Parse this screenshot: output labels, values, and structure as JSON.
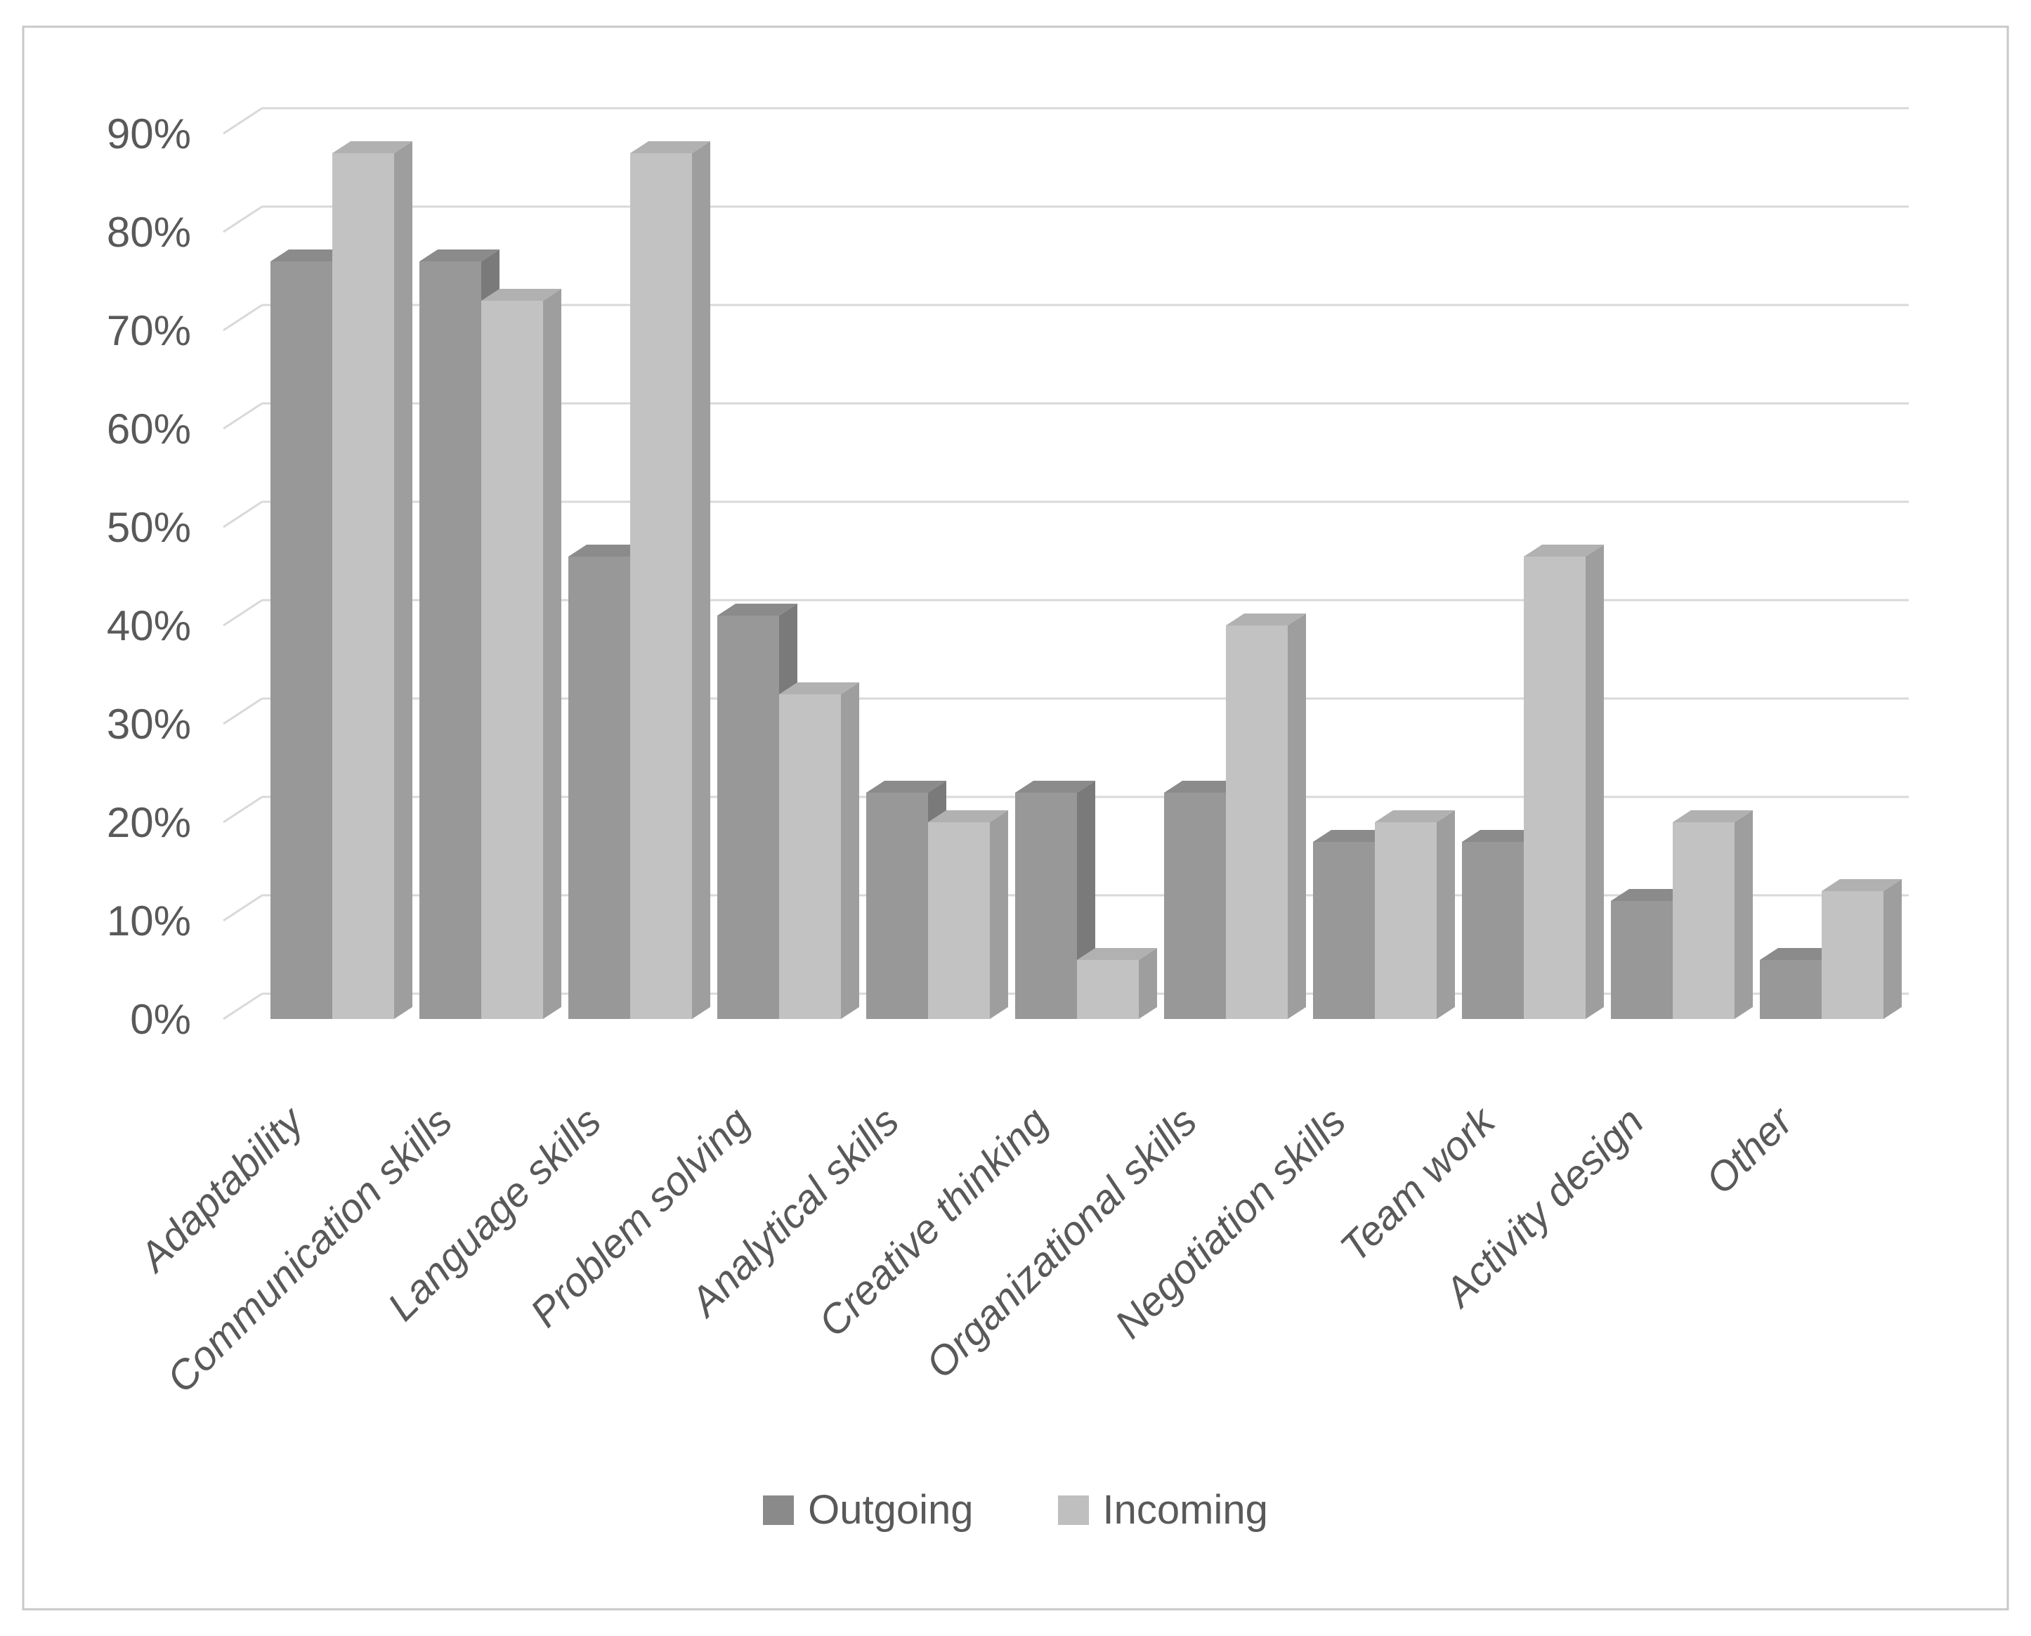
{
  "chart_data": {
    "type": "bar",
    "variant": "3d-clustered-column",
    "title": "",
    "xlabel": "",
    "ylabel": "",
    "categories": [
      "Adaptability",
      "Communication skills",
      "Language skills",
      "Problem solving",
      "Analytical skills",
      "Creative thinking",
      "Organizational skills",
      "Negotiation skills",
      "Team work",
      "Activity design",
      "Other"
    ],
    "series": [
      {
        "name": "Outgoing",
        "values": [
          77,
          77,
          47,
          41,
          23,
          23,
          23,
          18,
          18,
          12,
          6
        ],
        "front": "#989898",
        "side": "#7a7a7a",
        "top": "#8b8b8b",
        "swatch": "#8a8a8a"
      },
      {
        "name": "Incoming",
        "values": [
          88,
          73,
          88,
          33,
          20,
          6,
          40,
          20,
          47,
          20,
          13
        ],
        "front": "#c2c2c2",
        "side": "#9e9e9e",
        "top": "#b1b1b1",
        "swatch": "#bfbfbf"
      }
    ],
    "y_ticks": [
      "0%",
      "10%",
      "20%",
      "30%",
      "40%",
      "50%",
      "60%",
      "70%",
      "80%",
      "90%"
    ],
    "ylim": [
      0,
      90
    ],
    "grid": true,
    "legend_position": "bottom",
    "colors": {
      "gridline": "#d9d9d9",
      "axis_text": "#595959",
      "border": "#c8c8c8",
      "background": "#ffffff"
    }
  }
}
